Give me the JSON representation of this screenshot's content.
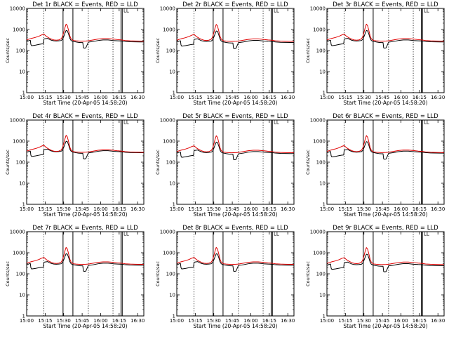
{
  "figure": {
    "panel_columns": 3,
    "panel_rows": 3
  },
  "chart_data": {
    "type": "line",
    "title_template": "{det} BLACK = Events, RED = LLD",
    "shared": {
      "xlabel": "Start Time (20-Apr-05 14:58:20)",
      "ylabel": "Counts/sec",
      "yscale": "log",
      "ylim": [
        1,
        10000
      ],
      "ytick_labels": [
        "1",
        "10",
        "100",
        "1000",
        "10000"
      ],
      "yticks": [
        1,
        10,
        100,
        1000,
        10000
      ],
      "xlim_minutes": [
        900,
        995
      ],
      "xticks_minutes": [
        900,
        915,
        930,
        945,
        960,
        975,
        990
      ],
      "xtick_labels": [
        "15:00",
        "15:15",
        "15:30",
        "15:45",
        "16:00",
        "16:15",
        "16:30"
      ],
      "dotted_vlines_minutes": [
        914,
        950,
        970
      ],
      "solid_vlines_minutes": [
        929.5,
        937.5,
        976.5,
        977.5
      ],
      "grid": false,
      "legend": "none",
      "colors": {
        "events": "#000000",
        "lld": "#e00000"
      },
      "annotation": {
        "text": "LL",
        "x_minute": 978.5,
        "y_value": 6500
      }
    },
    "series_templates": [
      {
        "key": "events",
        "x": [
          900,
          901,
          902,
          903,
          903.4,
          904,
          907,
          910,
          912,
          913.6,
          914,
          915.5,
          917,
          918,
          920,
          922,
          924,
          926,
          928,
          929,
          930,
          931,
          932,
          933,
          934,
          935,
          936,
          937,
          938,
          940,
          942,
          944,
          945.5,
          946,
          947,
          948,
          950,
          954,
          958,
          962,
          966,
          970,
          974,
          977,
          980,
          984,
          988,
          992,
          995
        ],
        "y": [
          270,
          280,
          300,
          305,
          195,
          170,
          180,
          195,
          205,
          210,
          355,
          370,
          380,
          350,
          310,
          290,
          285,
          290,
          300,
          340,
          450,
          650,
          900,
          860,
          600,
          380,
          300,
          280,
          270,
          255,
          245,
          240,
          240,
          135,
          130,
          135,
          250,
          270,
          300,
          320,
          320,
          300,
          290,
          285,
          270,
          260,
          258,
          255,
          255
        ]
      },
      {
        "key": "lld",
        "x": [
          900,
          902,
          904,
          907,
          910,
          912,
          914,
          916,
          918,
          920,
          922,
          924,
          926,
          928,
          929,
          930,
          931,
          932,
          933,
          934,
          935,
          936,
          937,
          938,
          940,
          942,
          944,
          946,
          948,
          950,
          954,
          958,
          962,
          966,
          970,
          974,
          977,
          980,
          984,
          988,
          992,
          995
        ],
        "y": [
          320,
          350,
          380,
          420,
          480,
          550,
          600,
          470,
          400,
          350,
          320,
          310,
          320,
          360,
          450,
          700,
          1200,
          1800,
          1500,
          900,
          500,
          360,
          320,
          300,
          290,
          285,
          280,
          282,
          285,
          290,
          320,
          350,
          370,
          370,
          350,
          330,
          320,
          300,
          290,
          285,
          282,
          280
        ]
      }
    ],
    "panels": [
      {
        "det": "Det 1r",
        "events_scale": 1.0,
        "lld_scale": 1.0
      },
      {
        "det": "Det 2r",
        "events_scale": 0.95,
        "lld_scale": 0.97
      },
      {
        "det": "Det 3r",
        "events_scale": 1.0,
        "lld_scale": 1.0
      },
      {
        "det": "Det 4r",
        "events_scale": 1.1,
        "lld_scale": 1.05
      },
      {
        "det": "Det 5r",
        "events_scale": 1.0,
        "lld_scale": 1.0
      },
      {
        "det": "Det 6r",
        "events_scale": 1.05,
        "lld_scale": 1.02
      },
      {
        "det": "Det 7r",
        "events_scale": 1.0,
        "lld_scale": 1.0
      },
      {
        "det": "Det 8r",
        "events_scale": 1.0,
        "lld_scale": 1.0
      },
      {
        "det": "Det 9r",
        "events_scale": 0.95,
        "lld_scale": 0.98
      }
    ]
  }
}
